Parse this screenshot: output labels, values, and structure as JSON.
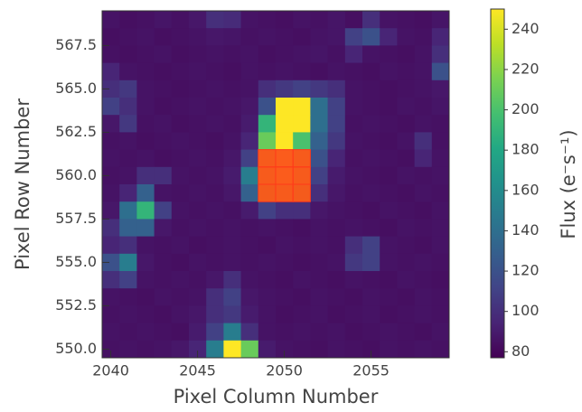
{
  "chart_data": {
    "type": "heatmap",
    "xlabel": "Pixel Column Number",
    "ylabel": "Pixel Row Number",
    "colorbar_label": "Flux (e⁻s⁻¹)",
    "cmap": "viridis",
    "x": [
      2040,
      2041,
      2042,
      2043,
      2044,
      2045,
      2046,
      2047,
      2048,
      2049,
      2050,
      2051,
      2052,
      2053,
      2054,
      2055,
      2056,
      2057,
      2058,
      2059
    ],
    "y": [
      569,
      568,
      567,
      566,
      565,
      564,
      563,
      562,
      561,
      560,
      559,
      558,
      557,
      556,
      555,
      554,
      553,
      552,
      551,
      550
    ],
    "z": [
      [
        86,
        84,
        85,
        87,
        85,
        88,
        100,
        98,
        86,
        85,
        84,
        86,
        85,
        87,
        84,
        100,
        86,
        85,
        84,
        87
      ],
      [
        84,
        85,
        86,
        84,
        85,
        86,
        88,
        87,
        85,
        86,
        85,
        84,
        86,
        87,
        110,
        120,
        95,
        86,
        85,
        95
      ],
      [
        85,
        84,
        85,
        86,
        84,
        85,
        86,
        85,
        86,
        84,
        85,
        86,
        87,
        85,
        95,
        86,
        85,
        84,
        86,
        100
      ],
      [
        95,
        86,
        85,
        84,
        85,
        86,
        85,
        84,
        86,
        85,
        86,
        85,
        84,
        86,
        85,
        84,
        86,
        85,
        86,
        120
      ],
      [
        100,
        105,
        86,
        85,
        84,
        85,
        86,
        85,
        86,
        100,
        105,
        110,
        105,
        100,
        86,
        85,
        84,
        85,
        86,
        88
      ],
      [
        110,
        100,
        86,
        84,
        85,
        86,
        85,
        86,
        88,
        120,
        250,
        250,
        140,
        110,
        86,
        85,
        84,
        86,
        85,
        87
      ],
      [
        88,
        105,
        85,
        86,
        84,
        85,
        86,
        85,
        90,
        190,
        250,
        250,
        140,
        110,
        85,
        86,
        85,
        84,
        86,
        85
      ],
      [
        85,
        86,
        84,
        85,
        86,
        85,
        84,
        86,
        95,
        210,
        250,
        200,
        130,
        105,
        86,
        85,
        84,
        86,
        100,
        85
      ],
      [
        86,
        85,
        86,
        84,
        85,
        86,
        85,
        88,
        110,
        240,
        245,
        240,
        120,
        95,
        85,
        86,
        85,
        84,
        95,
        86
      ],
      [
        85,
        86,
        100,
        100,
        86,
        85,
        86,
        90,
        150,
        240,
        245,
        240,
        110,
        90,
        86,
        85,
        84,
        86,
        85,
        86
      ],
      [
        86,
        95,
        130,
        86,
        85,
        86,
        85,
        88,
        130,
        235,
        240,
        235,
        100,
        88,
        85,
        86,
        85,
        84,
        86,
        85
      ],
      [
        88,
        140,
        190,
        110,
        86,
        85,
        86,
        85,
        90,
        110,
        100,
        100,
        88,
        86,
        85,
        84,
        86,
        85,
        84,
        86
      ],
      [
        100,
        130,
        130,
        88,
        85,
        86,
        85,
        86,
        85,
        86,
        85,
        84,
        86,
        85,
        86,
        85,
        84,
        86,
        85,
        86
      ],
      [
        95,
        100,
        86,
        85,
        86,
        84,
        85,
        86,
        85,
        84,
        86,
        85,
        86,
        85,
        100,
        110,
        86,
        85,
        84,
        86
      ],
      [
        120,
        150,
        88,
        85,
        84,
        86,
        85,
        86,
        85,
        86,
        85,
        84,
        85,
        86,
        105,
        110,
        86,
        85,
        86,
        85
      ],
      [
        100,
        110,
        86,
        85,
        86,
        85,
        88,
        100,
        86,
        85,
        84,
        86,
        85,
        84,
        86,
        85,
        84,
        86,
        85,
        84
      ],
      [
        86,
        85,
        84,
        86,
        85,
        86,
        100,
        110,
        88,
        86,
        85,
        84,
        86,
        85,
        84,
        86,
        85,
        84,
        86,
        85
      ],
      [
        85,
        86,
        85,
        84,
        86,
        88,
        100,
        105,
        90,
        86,
        84,
        85,
        86,
        84,
        85,
        86,
        84,
        85,
        86,
        85
      ],
      [
        86,
        85,
        86,
        85,
        84,
        90,
        110,
        150,
        100,
        86,
        85,
        86,
        85,
        86,
        84,
        85,
        86,
        85,
        84,
        86
      ],
      [
        85,
        86,
        85,
        86,
        88,
        95,
        150,
        250,
        210,
        90,
        86,
        85,
        84,
        86,
        85,
        84,
        86,
        85,
        86,
        85
      ]
    ],
    "aperture": [
      [
        2049,
        561
      ],
      [
        2050,
        561
      ],
      [
        2051,
        561
      ],
      [
        2049,
        560
      ],
      [
        2050,
        560
      ],
      [
        2051,
        560
      ],
      [
        2049,
        559
      ],
      [
        2050,
        559
      ],
      [
        2051,
        559
      ]
    ],
    "aperture_color": "#ff3a1a",
    "xlim": [
      2039.5,
      2059.5
    ],
    "ylim": [
      549.5,
      569.5
    ],
    "xticks": [
      2040,
      2045,
      2050,
      2055
    ],
    "yticks": [
      {
        "value": 550,
        "label": "550.0"
      },
      552.5,
      {
        "value": 555,
        "label": "555.0"
      },
      557.5,
      {
        "value": 560,
        "label": "560.0"
      },
      562.5,
      {
        "value": 565,
        "label": "565.0"
      },
      567.5
    ],
    "clim": [
      77,
      250
    ],
    "cticks": [
      80,
      100,
      120,
      140,
      160,
      180,
      200,
      220,
      240
    ]
  }
}
